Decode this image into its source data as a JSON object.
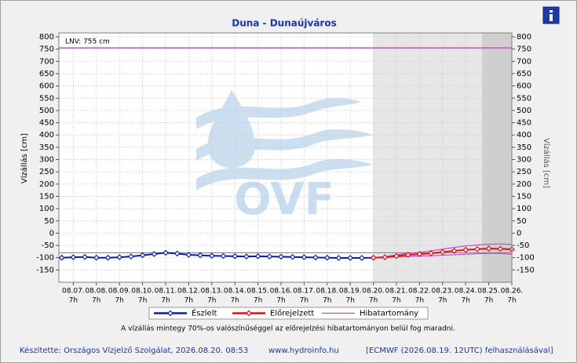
{
  "chart_data": {
    "type": "line",
    "title": "Duna - Dunaújváros",
    "y_label": "Vízállás [cm]",
    "y2_label": "Vízállás [cm]",
    "watermark": "OVF",
    "xlim": [
      "08.06. 16h",
      "08.26. 7h"
    ],
    "xticks": [
      {
        "date": "08.07.",
        "hour": "7h"
      },
      {
        "date": "08.08.",
        "hour": "7h"
      },
      {
        "date": "08.09.",
        "hour": "7h"
      },
      {
        "date": "08.10.",
        "hour": "7h"
      },
      {
        "date": "08.11.",
        "hour": "7h"
      },
      {
        "date": "08.12.",
        "hour": "7h"
      },
      {
        "date": "08.13.",
        "hour": "7h"
      },
      {
        "date": "08.14.",
        "hour": "7h"
      },
      {
        "date": "08.15.",
        "hour": "7h"
      },
      {
        "date": "08.16.",
        "hour": "7h"
      },
      {
        "date": "08.17.",
        "hour": "7h"
      },
      {
        "date": "08.18.",
        "hour": "7h"
      },
      {
        "date": "08.19.",
        "hour": "7h"
      },
      {
        "date": "08.20.",
        "hour": "7h"
      },
      {
        "date": "08.21.",
        "hour": "7h"
      },
      {
        "date": "08.22.",
        "hour": "7h"
      },
      {
        "date": "08.23.",
        "hour": "7h"
      },
      {
        "date": "08.24.",
        "hour": "7h"
      },
      {
        "date": "08.25.",
        "hour": "7h"
      },
      {
        "date": "08.26.",
        "hour": "7h"
      }
    ],
    "ylim": [
      -200,
      800
    ],
    "yticks": [
      -150,
      -100,
      -50,
      0,
      50,
      100,
      150,
      200,
      250,
      300,
      350,
      400,
      450,
      500,
      550,
      600,
      650,
      700,
      750,
      800
    ],
    "grid": true,
    "shaded": [
      {
        "from": "08.20. 7h",
        "to": "08.26. 7h",
        "color": "#e6e6e6"
      },
      {
        "from": "08.25. 0h",
        "to": "08.26. 7h",
        "color": "#cfcfcf"
      }
    ],
    "reference_line": {
      "value": -80,
      "color": "#8a8a8a"
    },
    "lnv": {
      "value": 755,
      "label": "LNV: 755 cm",
      "color": "#e040e0"
    },
    "series": [
      {
        "name": "Észlelt",
        "color": "#0a1ea8",
        "x": [
          "08.06. 19h",
          "08.07. 7h",
          "08.07. 19h",
          "08.08. 7h",
          "08.08. 19h",
          "08.09. 7h",
          "08.09. 19h",
          "08.10. 7h",
          "08.10. 19h",
          "08.11. 7h",
          "08.11. 19h",
          "08.12. 7h",
          "08.12. 19h",
          "08.13. 7h",
          "08.13. 19h",
          "08.14. 7h",
          "08.14. 19h",
          "08.15. 7h",
          "08.15. 19h",
          "08.16. 7h",
          "08.16. 19h",
          "08.17. 7h",
          "08.17. 19h",
          "08.18. 7h",
          "08.18. 19h",
          "08.19. 7h",
          "08.19. 19h",
          "08.20. 7h"
        ],
        "values": [
          -100,
          -98,
          -97,
          -100,
          -100,
          -98,
          -95,
          -90,
          -85,
          -80,
          -83,
          -88,
          -90,
          -92,
          -93,
          -94,
          -95,
          -94,
          -95,
          -96,
          -97,
          -98,
          -99,
          -100,
          -101,
          -101,
          -101,
          -100
        ]
      },
      {
        "name": "Előrejelzett",
        "color": "#e01010",
        "x": [
          "08.20. 7h",
          "08.20. 19h",
          "08.21. 7h",
          "08.21. 19h",
          "08.22. 7h",
          "08.22. 19h",
          "08.23. 7h",
          "08.23. 19h",
          "08.24. 7h",
          "08.24. 19h",
          "08.25. 7h",
          "08.25. 19h",
          "08.26. 7h"
        ],
        "values": [
          -100,
          -98,
          -93,
          -88,
          -85,
          -82,
          -77,
          -72,
          -68,
          -65,
          -63,
          -64,
          -66
        ]
      },
      {
        "name": "Hibatartomány",
        "color": "#d040d0",
        "x": [
          "08.20. 7h",
          "08.20. 19h",
          "08.21. 7h",
          "08.21. 19h",
          "08.22. 7h",
          "08.22. 19h",
          "08.23. 7h",
          "08.23. 19h",
          "08.24. 7h",
          "08.24. 19h",
          "08.25. 7h",
          "08.25. 19h",
          "08.26. 7h"
        ],
        "values": [
          -100,
          -96,
          -88,
          -82,
          -78,
          -72,
          -65,
          -58,
          -52,
          -48,
          -45,
          -44,
          -46
        ],
        "lower": [
          -100,
          -99,
          -97,
          -95,
          -93,
          -92,
          -90,
          -88,
          -86,
          -84,
          -82,
          -83,
          -86
        ]
      }
    ],
    "note": "A vízállás mintegy 70%-os valószínűséggel az előrejelzési hibatartományon belül fog maradni.",
    "footer": {
      "author": "Készítette: Országos Vízjelző Szolgálat, 2026.08.20. 08:53",
      "website": "www.hydroinfo.hu",
      "source": "[ECMWF (2026.08.19. 12UTC) felhasználásával]"
    }
  }
}
